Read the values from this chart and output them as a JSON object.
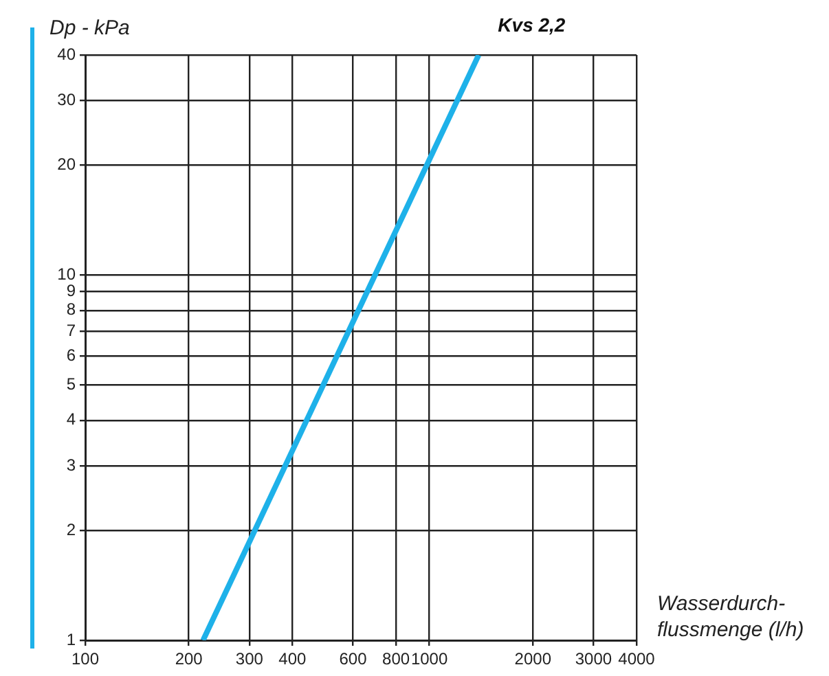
{
  "chart_data": {
    "type": "line",
    "xlabel": "Wasserdurch-\nflussmenge (l/h)",
    "ylabel": "Dp - kPa",
    "log": "xy",
    "grid": true,
    "legend": false,
    "marker": "none",
    "line_style": "solid",
    "xlim": [
      100,
      4000
    ],
    "xticks": [
      100,
      200,
      300,
      400,
      600,
      800,
      1000,
      2000,
      3000,
      4000
    ],
    "ylim": [
      1,
      40
    ],
    "yticks": [
      1,
      2,
      3,
      4,
      5,
      6,
      7,
      8,
      9,
      10,
      20,
      30,
      40
    ],
    "series": [
      {
        "name": "Kvs 2,2",
        "color": "#1eb1e9",
        "x": [
          220,
          1391
        ],
        "values": [
          1,
          40
        ]
      }
    ]
  }
}
